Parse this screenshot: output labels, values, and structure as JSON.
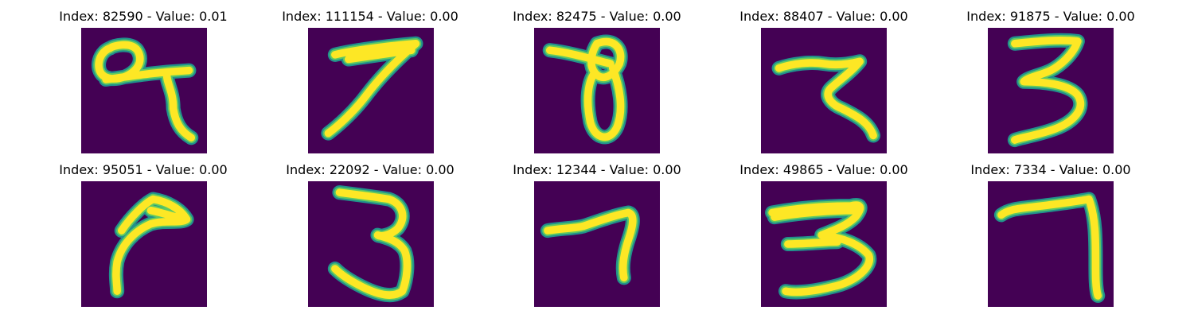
{
  "colors": {
    "background": "#440154",
    "stroke_core": "#fde725",
    "stroke_mid": "#5ec962",
    "stroke_edge": "#21918c"
  },
  "panels": [
    {
      "title": "Index: 82590 - Value: 0.01"
    },
    {
      "title": "Index: 111154 - Value: 0.00"
    },
    {
      "title": "Index: 82475 - Value: 0.00"
    },
    {
      "title": "Index: 88407 - Value: 0.00"
    },
    {
      "title": "Index: 91875 - Value: 0.00"
    },
    {
      "title": "Index: 95051 - Value: 0.00"
    },
    {
      "title": "Index: 22092 - Value: 0.00"
    },
    {
      "title": "Index: 12344 - Value: 0.00"
    },
    {
      "title": "Index: 49865 - Value: 0.00"
    },
    {
      "title": "Index: 7334 - Value: 0.00"
    }
  ]
}
